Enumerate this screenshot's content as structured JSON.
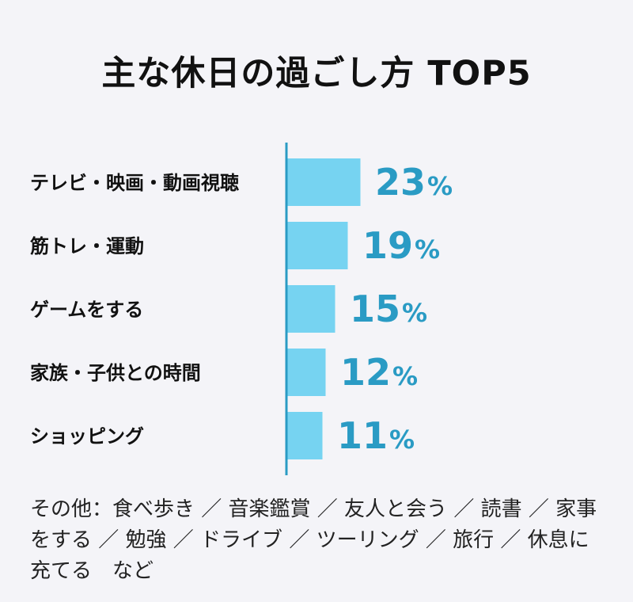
{
  "title": "主な休日の過ごし方 TOP5",
  "chart_data": {
    "type": "bar",
    "orientation": "horizontal",
    "categories": [
      "テレビ・映画・動画視聴",
      "筋トレ・運動",
      "ゲームをする",
      "家族・子供との時間",
      "ショッピング"
    ],
    "values": [
      23,
      19,
      15,
      12,
      11
    ],
    "value_suffix": "%",
    "xlim": [
      0,
      100
    ],
    "grid": false,
    "legend": "none",
    "bar_color": "#76d3f1",
    "axis_color": "#2a9bc4",
    "label_color": "#2a9bc4"
  },
  "note": "その他：食べ歩き ／ 音楽鑑賞 ／ 友人と会う ／ 読書 ／ 家事をする ／ 勉強 ／ ドライブ ／ ツーリング ／ 旅行 ／ 休息に充てる　など"
}
